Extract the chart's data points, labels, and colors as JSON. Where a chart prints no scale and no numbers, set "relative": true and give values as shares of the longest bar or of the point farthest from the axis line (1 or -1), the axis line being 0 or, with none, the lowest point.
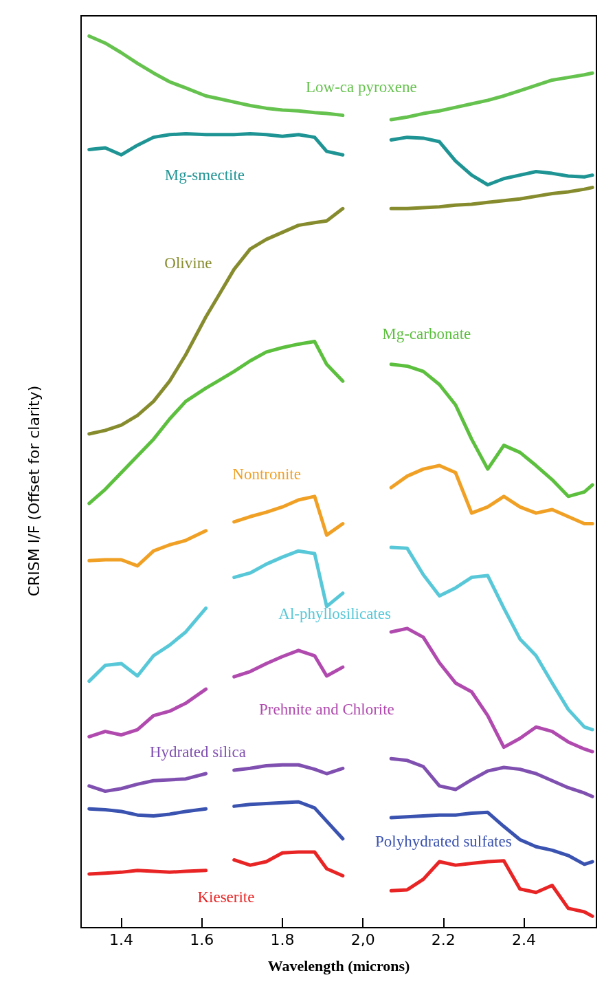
{
  "chart_data": {
    "type": "line",
    "relative": true,
    "xlabel": "Wavelength (microns)",
    "ylabel": "CRISM I/F (Offset for clarity)",
    "xlim": [
      1.3,
      2.58
    ],
    "xticks": [
      1.4,
      1.6,
      1.8,
      {
        "value": 2.0,
        "label": "2,0"
      },
      2.2,
      2.4
    ],
    "tick_labels": "x",
    "marker": "none",
    "line_style": "solid",
    "x": [
      1.32,
      1.36,
      1.4,
      1.44,
      1.48,
      1.52,
      1.56,
      1.61,
      1.64,
      1.68,
      1.72,
      1.76,
      1.8,
      1.84,
      1.88,
      1.91,
      1.95,
      2.0,
      2.07,
      2.11,
      2.15,
      2.19,
      2.23,
      2.27,
      2.31,
      2.35,
      2.39,
      2.43,
      2.47,
      2.51,
      2.55,
      2.57
    ],
    "series": [
      {
        "name": "Low-ca pyroxene",
        "color": "#66c24e",
        "values": [
          1.0,
          0.992,
          0.981,
          0.969,
          0.958,
          0.948,
          0.941,
          0.932,
          0.929,
          0.925,
          0.921,
          0.918,
          0.916,
          0.915,
          0.913,
          0.912,
          0.91,
          null,
          0.905,
          0.908,
          0.912,
          0.915,
          0.919,
          0.923,
          0.927,
          0.932,
          0.938,
          0.944,
          0.95,
          0.953,
          0.956,
          0.958
        ]
      },
      {
        "name": "Mg-smectite",
        "color": "#1f9494",
        "values": [
          0.871,
          0.873,
          0.865,
          0.876,
          0.885,
          0.888,
          0.889,
          0.888,
          0.888,
          0.888,
          0.889,
          0.888,
          0.886,
          0.888,
          0.885,
          0.869,
          0.865,
          null,
          0.882,
          0.885,
          0.884,
          0.88,
          0.858,
          0.842,
          0.831,
          0.838,
          0.842,
          0.846,
          0.844,
          0.841,
          0.84,
          0.842
        ]
      },
      {
        "name": "Olivine",
        "color": "#868c2e",
        "values": [
          0.548,
          0.552,
          0.558,
          0.569,
          0.585,
          0.608,
          0.638,
          0.681,
          0.704,
          0.735,
          0.758,
          0.769,
          0.777,
          0.785,
          0.788,
          0.79,
          0.804,
          null,
          0.804,
          0.804,
          0.805,
          0.806,
          0.808,
          0.809,
          0.811,
          0.813,
          0.815,
          0.818,
          0.821,
          0.823,
          0.826,
          0.828
        ]
      },
      {
        "name": "Mg-carbonate",
        "color": "#5cbf3e",
        "values": [
          0.469,
          0.485,
          0.504,
          0.523,
          0.542,
          0.565,
          0.585,
          0.6,
          0.608,
          0.619,
          0.631,
          0.641,
          0.646,
          0.65,
          0.653,
          0.627,
          0.608,
          null,
          0.627,
          0.625,
          0.619,
          0.604,
          0.581,
          0.542,
          0.508,
          0.535,
          0.527,
          0.512,
          0.496,
          0.477,
          0.482,
          0.49
        ]
      },
      {
        "name": "Nontronite",
        "color": "#f0a024",
        "values": [
          0.404,
          0.405,
          0.405,
          0.398,
          0.415,
          0.422,
          0.427,
          0.438,
          null,
          0.448,
          0.454,
          0.459,
          0.465,
          0.473,
          0.477,
          0.433,
          0.446,
          null,
          0.487,
          0.5,
          0.508,
          0.512,
          0.504,
          0.458,
          0.465,
          0.477,
          0.465,
          0.458,
          0.462,
          0.454,
          0.446,
          0.446
        ]
      },
      {
        "name": "Al-phyllosilicates",
        "color": "#58c8d8",
        "values": [
          0.267,
          0.285,
          0.287,
          0.273,
          0.296,
          0.308,
          0.323,
          0.35,
          null,
          0.385,
          0.39,
          0.4,
          0.408,
          0.415,
          0.412,
          0.352,
          0.367,
          null,
          0.419,
          0.418,
          0.388,
          0.364,
          0.373,
          0.385,
          0.387,
          0.35,
          0.315,
          0.296,
          0.265,
          0.235,
          0.215,
          0.212
        ]
      },
      {
        "name": "Prehnite and Chlorite",
        "color": "#b04aae",
        "values": [
          0.204,
          0.21,
          0.206,
          0.212,
          0.228,
          0.233,
          0.242,
          0.258,
          null,
          0.272,
          0.278,
          0.287,
          0.295,
          0.302,
          0.296,
          0.273,
          0.283,
          null,
          0.323,
          0.327,
          0.317,
          0.288,
          0.265,
          0.255,
          0.228,
          0.192,
          0.202,
          0.215,
          0.21,
          0.198,
          0.19,
          0.187
        ]
      },
      {
        "name": "Hydrated silica",
        "color": "#8050b0",
        "values": [
          0.148,
          0.142,
          0.145,
          0.15,
          0.154,
          0.155,
          0.156,
          0.162,
          null,
          0.166,
          0.168,
          0.171,
          0.172,
          0.172,
          0.167,
          0.162,
          0.168,
          null,
          0.179,
          0.177,
          0.17,
          0.148,
          0.144,
          0.155,
          0.165,
          0.169,
          0.167,
          0.162,
          0.154,
          0.146,
          0.14,
          0.136
        ]
      },
      {
        "name": "Polyhydrated sulfates",
        "color": "#3a52b0",
        "values": [
          0.122,
          0.121,
          0.119,
          0.115,
          0.114,
          0.116,
          0.119,
          0.122,
          null,
          0.125,
          0.127,
          0.128,
          0.129,
          0.13,
          0.123,
          0.108,
          0.088,
          null,
          0.112,
          0.113,
          0.114,
          0.115,
          0.115,
          0.117,
          0.118,
          0.102,
          0.087,
          0.079,
          0.075,
          0.069,
          0.059,
          0.062
        ]
      },
      {
        "name": "Kieserite",
        "color": "#e82424",
        "values": [
          0.048,
          0.049,
          0.05,
          0.052,
          0.051,
          0.05,
          0.051,
          0.052,
          null,
          0.064,
          0.058,
          0.062,
          0.072,
          0.073,
          0.073,
          0.054,
          0.046,
          null,
          0.029,
          0.03,
          0.042,
          0.062,
          0.058,
          0.06,
          0.062,
          0.063,
          0.031,
          0.027,
          0.035,
          0.009,
          0.005,
          0
        ]
      }
    ]
  }
}
